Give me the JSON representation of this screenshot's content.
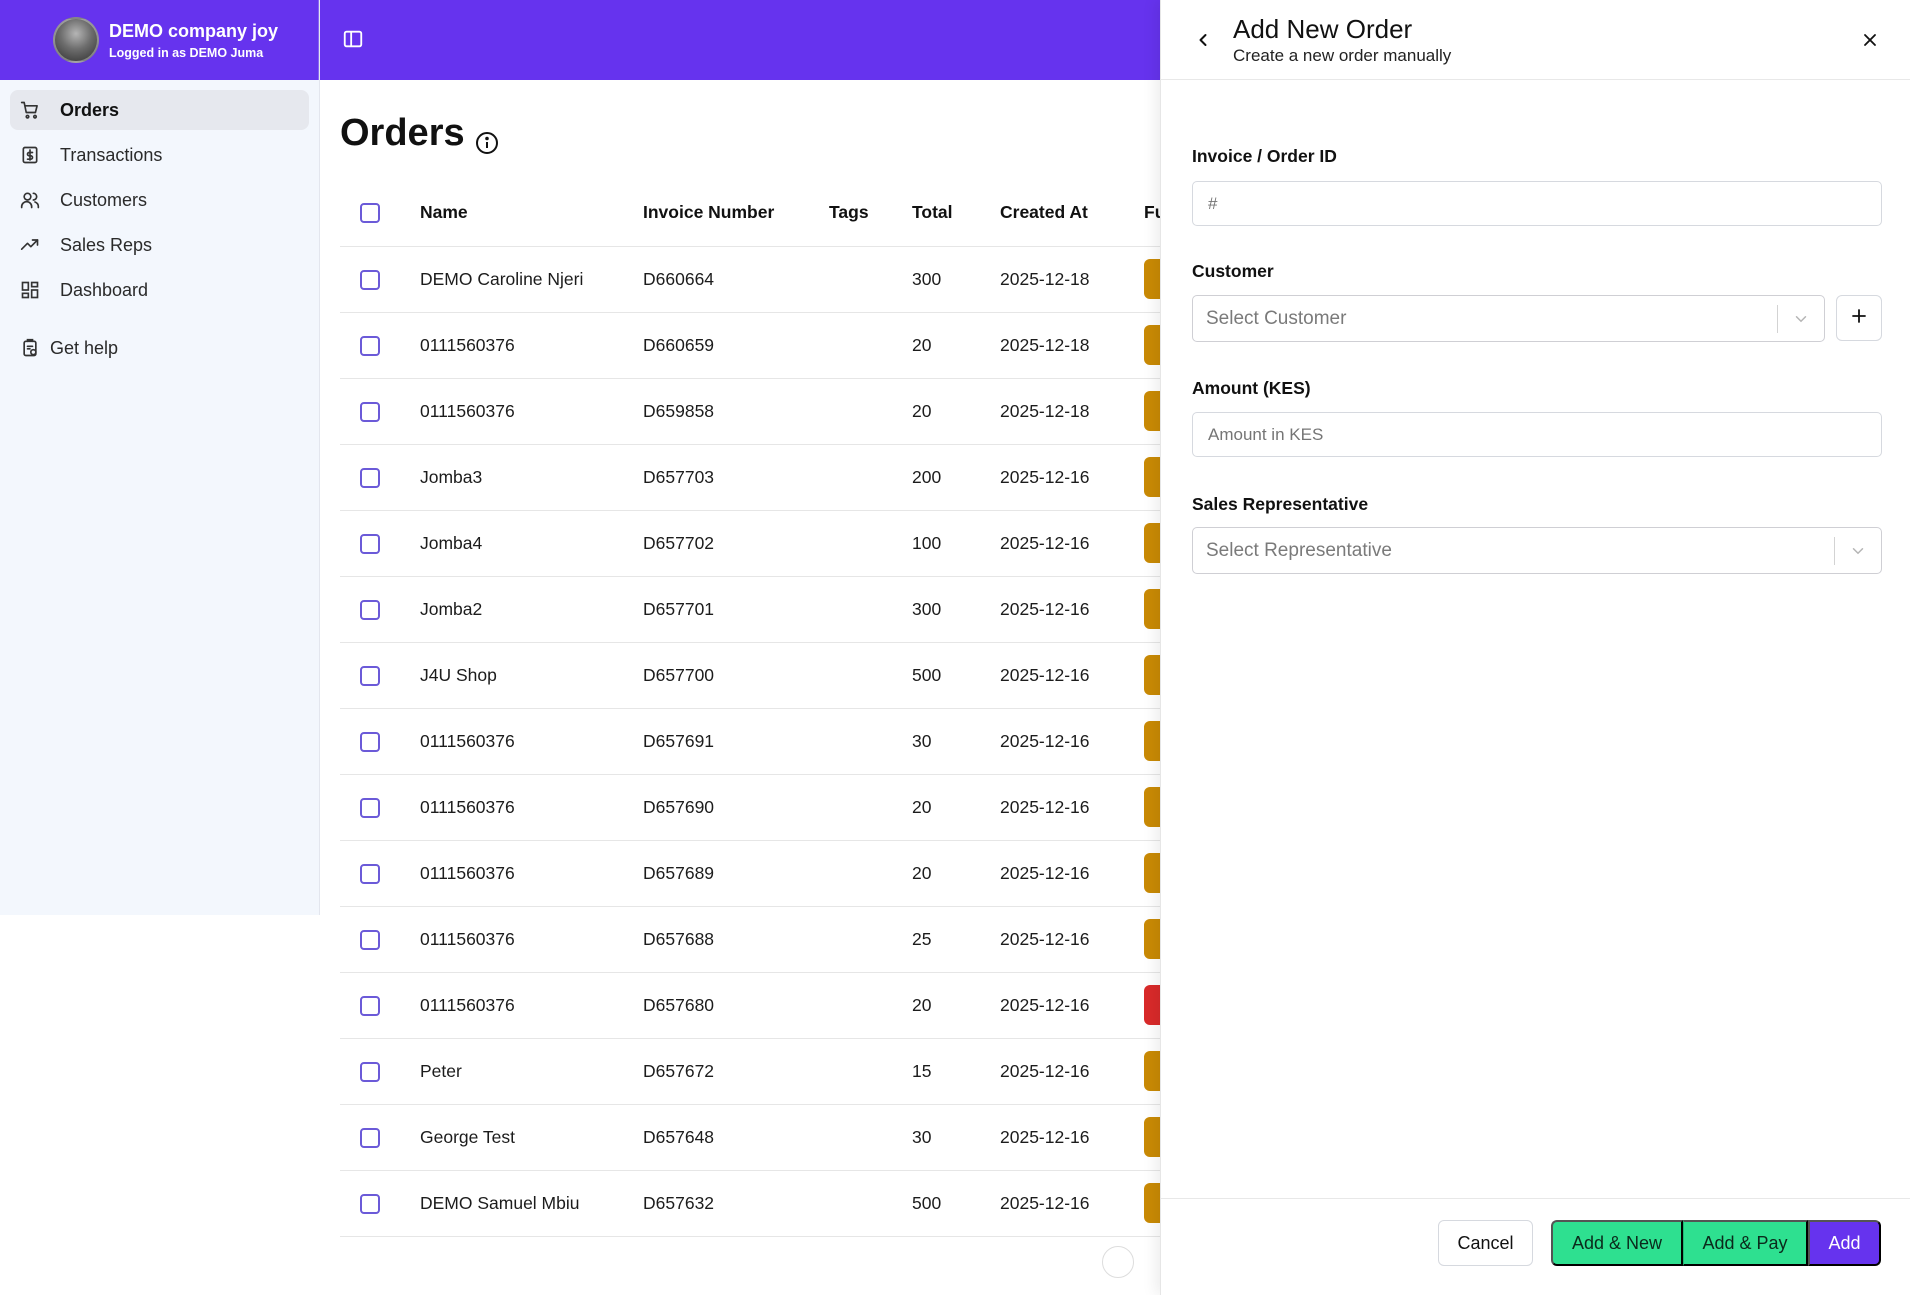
{
  "sidebar": {
    "company": "DEMO company joy",
    "logged_in": "Logged in as DEMO Juma",
    "items": [
      {
        "label": "Orders",
        "icon": "cart-icon"
      },
      {
        "label": "Transactions",
        "icon": "dollar-icon"
      },
      {
        "label": "Customers",
        "icon": "users-icon"
      },
      {
        "label": "Sales Reps",
        "icon": "trending-up-icon"
      },
      {
        "label": "Dashboard",
        "icon": "dashboard-grid-icon"
      }
    ],
    "help": "Get help"
  },
  "main": {
    "title": "Orders",
    "columns": [
      "Name",
      "Invoice Number",
      "Tags",
      "Total",
      "Created At",
      "Fu"
    ],
    "rows": [
      {
        "name": "DEMO Caroline Njeri",
        "invoice": "D660664",
        "tags": "",
        "total": "300",
        "created": "2025-12-18",
        "status_color": "#c98a05"
      },
      {
        "name": "0111560376",
        "invoice": "D660659",
        "tags": "",
        "total": "20",
        "created": "2025-12-18",
        "status_color": "#c98a05"
      },
      {
        "name": "0111560376",
        "invoice": "D659858",
        "tags": "",
        "total": "20",
        "created": "2025-12-18",
        "status_color": "#c98a05"
      },
      {
        "name": "Jomba3",
        "invoice": "D657703",
        "tags": "",
        "total": "200",
        "created": "2025-12-16",
        "status_color": "#c98a05"
      },
      {
        "name": "Jomba4",
        "invoice": "D657702",
        "tags": "",
        "total": "100",
        "created": "2025-12-16",
        "status_color": "#c98a05"
      },
      {
        "name": "Jomba2",
        "invoice": "D657701",
        "tags": "",
        "total": "300",
        "created": "2025-12-16",
        "status_color": "#c98a05"
      },
      {
        "name": "J4U Shop",
        "invoice": "D657700",
        "tags": "",
        "total": "500",
        "created": "2025-12-16",
        "status_color": "#c98a05"
      },
      {
        "name": "0111560376",
        "invoice": "D657691",
        "tags": "",
        "total": "30",
        "created": "2025-12-16",
        "status_color": "#c98a05"
      },
      {
        "name": "0111560376",
        "invoice": "D657690",
        "tags": "",
        "total": "20",
        "created": "2025-12-16",
        "status_color": "#c98a05"
      },
      {
        "name": "0111560376",
        "invoice": "D657689",
        "tags": "",
        "total": "20",
        "created": "2025-12-16",
        "status_color": "#c98a05"
      },
      {
        "name": "0111560376",
        "invoice": "D657688",
        "tags": "",
        "total": "25",
        "created": "2025-12-16",
        "status_color": "#c98a05"
      },
      {
        "name": "0111560376",
        "invoice": "D657680",
        "tags": "",
        "total": "20",
        "created": "2025-12-16",
        "status_color": "#d92a2a"
      },
      {
        "name": "Peter",
        "invoice": "D657672",
        "tags": "",
        "total": "15",
        "created": "2025-12-16",
        "status_color": "#c98a05"
      },
      {
        "name": "George Test",
        "invoice": "D657648",
        "tags": "",
        "total": "30",
        "created": "2025-12-16",
        "status_color": "#c98a05"
      },
      {
        "name": "DEMO Samuel Mbiu",
        "invoice": "D657632",
        "tags": "",
        "total": "500",
        "created": "2025-12-16",
        "status_color": "#c98a05"
      }
    ]
  },
  "drawer": {
    "title": "Add New Order",
    "subtitle": "Create a new order manually",
    "invoice_label": "Invoice / Order ID",
    "invoice_placeholder": "#",
    "customer_label": "Customer",
    "customer_placeholder": "Select Customer",
    "amount_label": "Amount (KES)",
    "amount_placeholder": "Amount in KES",
    "rep_label": "Sales Representative",
    "rep_placeholder": "Select Representative",
    "buttons": {
      "cancel": "Cancel",
      "add_new": "Add & New",
      "add_pay": "Add & Pay",
      "add": "Add"
    }
  },
  "colors": {
    "brand": "#6633ee",
    "success": "#2ee090",
    "pending": "#c98a05",
    "error": "#d92a2a"
  }
}
